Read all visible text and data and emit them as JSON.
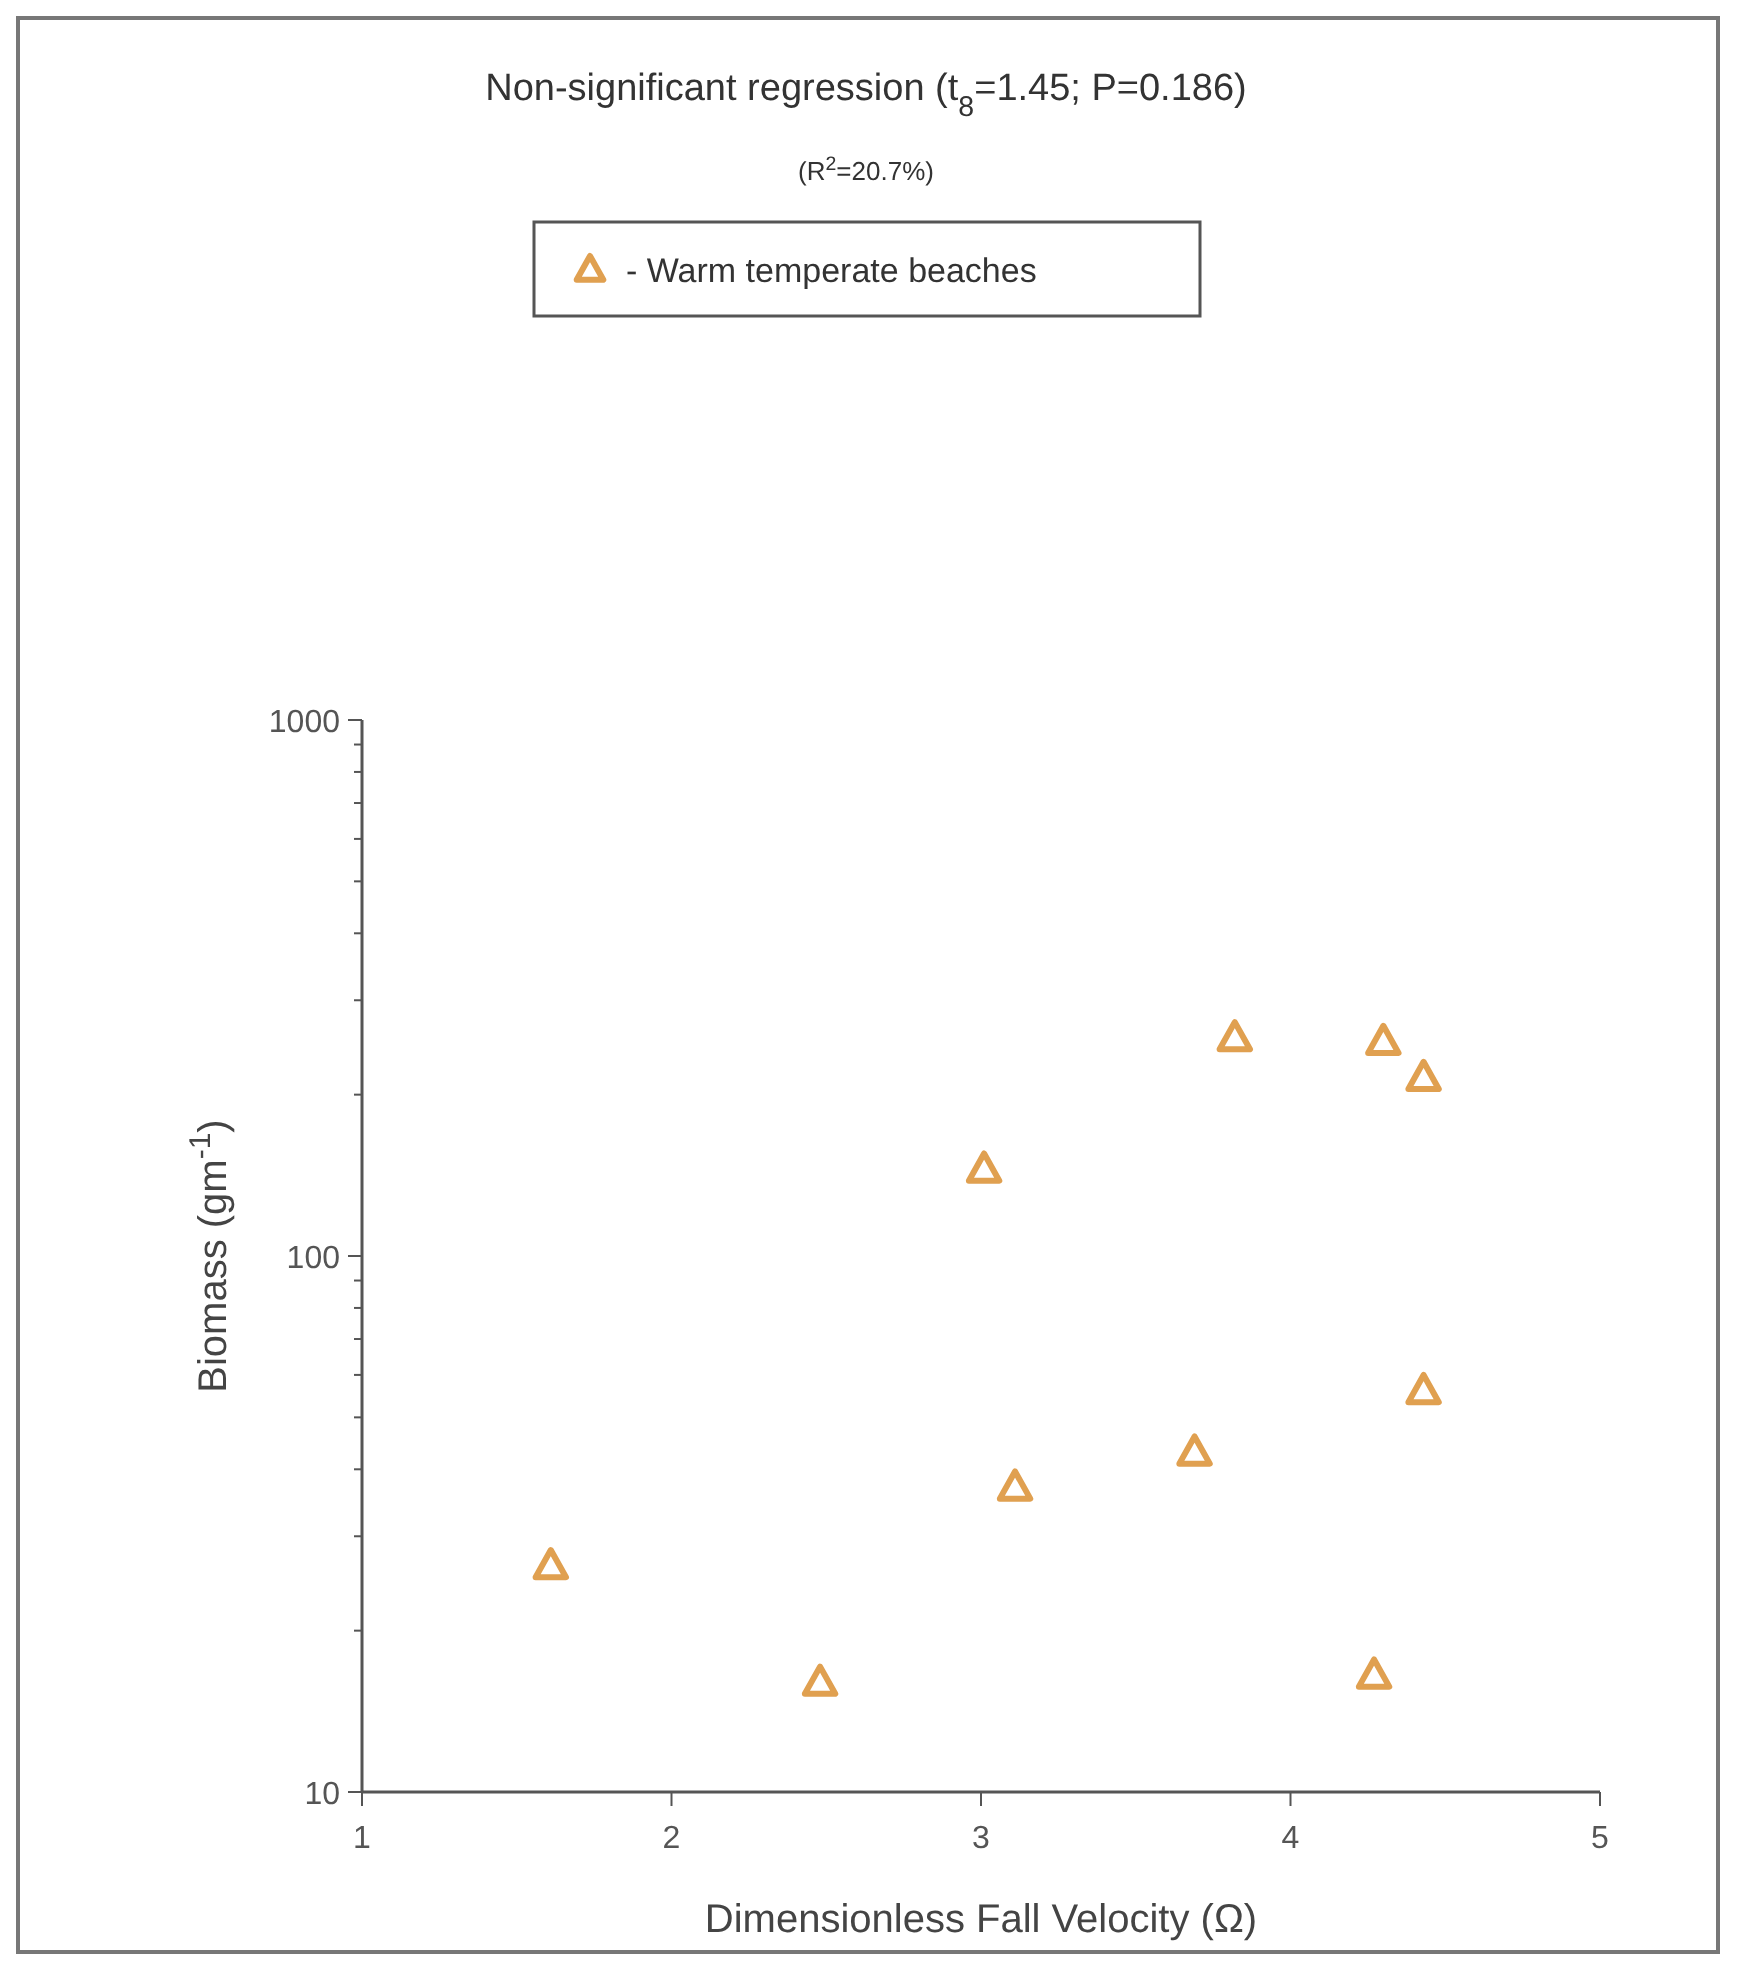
{
  "chart_data": {
    "type": "scatter",
    "title": "Non-significant regression (t$_{8}$=1.45; P=0.186)",
    "subtitle": "(R$^{2}$=20.7%)",
    "xlabel": "Dimensionless Fall Velocity (Ω)",
    "ylabel": "Biomass (gm$^{-1}$)",
    "log": "y",
    "xlim": [
      1,
      5
    ],
    "xticks": [
      1,
      2,
      3,
      4,
      5
    ],
    "ylim": [
      10,
      1000
    ],
    "yticks": [
      10,
      {
        "value": 20,
        "label": null
      },
      {
        "value": 30,
        "label": null
      },
      {
        "value": 40,
        "label": null
      },
      {
        "value": 50,
        "label": null
      },
      {
        "value": 60,
        "label": null
      },
      {
        "value": 70,
        "label": null
      },
      {
        "value": 80,
        "label": null
      },
      {
        "value": 90,
        "label": null
      },
      100,
      {
        "value": 200,
        "label": null
      },
      {
        "value": 300,
        "label": null
      },
      {
        "value": 400,
        "label": null
      },
      {
        "value": 500,
        "label": null
      },
      {
        "value": 600,
        "label": null
      },
      {
        "value": 700,
        "label": null
      },
      {
        "value": 800,
        "label": null
      },
      {
        "value": 900,
        "label": null
      },
      1000
    ],
    "grid": false,
    "legend": "top",
    "marker": "triangle",
    "series": [
      {
        "name": "- Warm temperate beaches",
        "color": "#e0a050",
        "x": [
          1.61,
          2.48,
          3.01,
          3.11,
          3.69,
          3.82,
          4.3,
          4.27,
          4.43,
          4.43
        ],
        "values": [
          26.4,
          16,
          145,
          37,
          43,
          255,
          251,
          16.5,
          215,
          56
        ]
      }
    ]
  }
}
